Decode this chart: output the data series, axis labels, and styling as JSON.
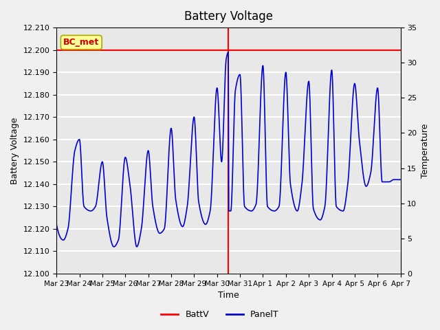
{
  "title": "Battery Voltage",
  "xlabel": "Time",
  "ylabel_left": "Battery Voltage",
  "ylabel_right": "Temperature",
  "legend_label": "BC_met",
  "ylim_left": [
    12.1,
    12.21
  ],
  "ylim_right": [
    0,
    35
  ],
  "batt_v": 12.2,
  "vline_x": 7.5,
  "x_tick_labels": [
    "Mar 23",
    "Mar 24",
    "Mar 25",
    "Mar 26",
    "Mar 27",
    "Mar 28",
    "Mar 29",
    "Mar 30",
    "Mar 31",
    "Apr 1",
    "Apr 2",
    "Apr 3",
    "Apr 4",
    "Apr 5",
    "Apr 6",
    "Apr 7"
  ],
  "background_color": "#e8e8e8",
  "grid_color": "#ffffff",
  "line_color_batt": "#ff0000",
  "line_color_panel": "#0000cc",
  "annotation_box_facecolor": "#ffff99",
  "annotation_box_edgecolor": "#aaaa00",
  "annotation_text_color": "#cc0000"
}
